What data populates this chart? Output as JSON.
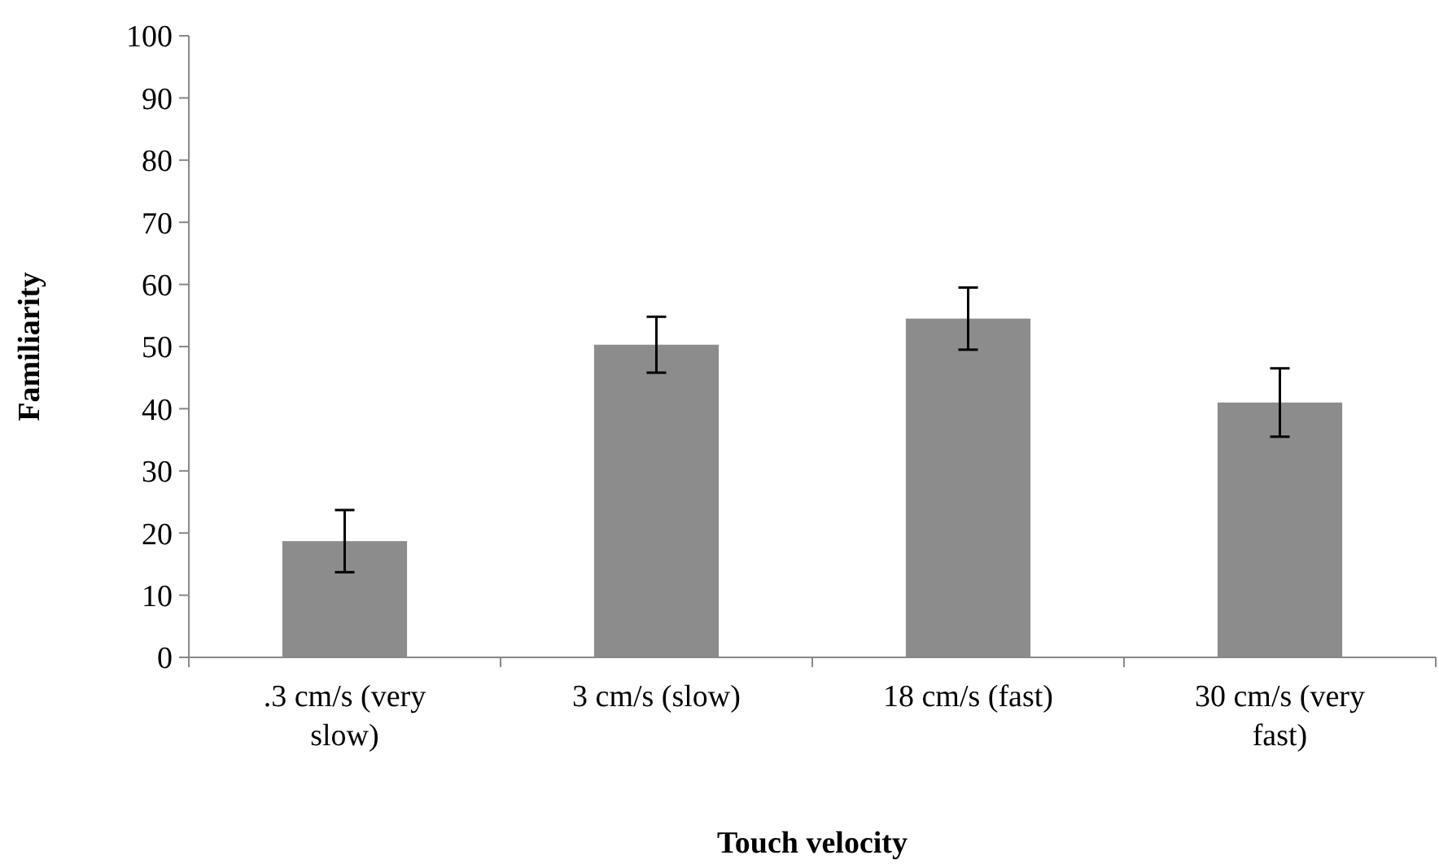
{
  "chart_data": {
    "type": "bar",
    "xlabel": "Touch velocity",
    "ylabel": "Familiarity",
    "categories": [
      ".3 cm/s (very slow)",
      "3 cm/s (slow)",
      "18 cm/s (fast)",
      "30 cm/s (very fast)"
    ],
    "values": [
      18.7,
      50.3,
      54.5,
      41
    ],
    "errors": [
      5,
      4.5,
      5,
      5.5
    ],
    "color": "#8c8c8c",
    "ylim": [
      0,
      100
    ],
    "yticks": [
      0,
      10,
      20,
      30,
      40,
      50,
      60,
      70,
      80,
      90,
      100
    ],
    "grid": false
  }
}
